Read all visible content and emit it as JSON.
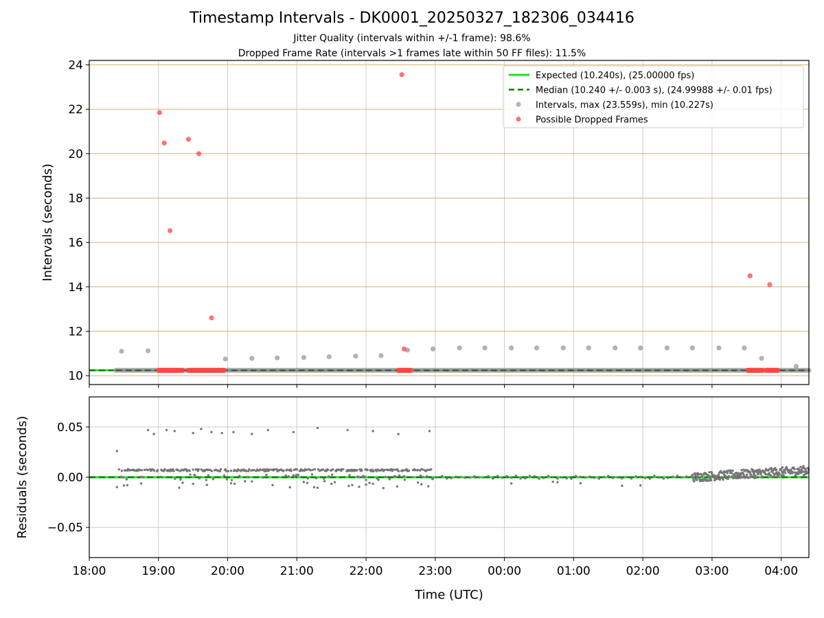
{
  "chart_data": {
    "type": "scatter",
    "title": "Timestamp Intervals - DK0001_20250327_182306_034416",
    "subtitles": [
      "Jitter Quality (intervals within +/-1 frame): 98.6%",
      "Dropped Frame Rate (intervals >1 frames late within 50 FF files): 11.5%"
    ],
    "colors": {
      "expected": "#22dd22",
      "median": "#007f00",
      "intervals": "#999999",
      "dropped": "#ff4444",
      "residuals": "#777777",
      "grid": "#cccccc",
      "ygrid_top": "#d9b36a"
    },
    "top_panel": {
      "ylabel": "Intervals (seconds)",
      "ylim": [
        9.6,
        24.2
      ],
      "yticks": [
        10,
        12,
        14,
        16,
        18,
        20,
        22,
        24
      ],
      "ytick_labels": [
        "10",
        "12",
        "14",
        "16",
        "18",
        "20",
        "22",
        "24"
      ],
      "legend": {
        "position": "top-right",
        "entries": [
          {
            "label": "Expected (10.240s), (25.00000 fps)",
            "kind": "solid-line",
            "color": "#22dd22"
          },
          {
            "label": "Median (10.240 +/- 0.003 s), (24.99988 +/- 0.01 fps)",
            "kind": "dashed-line",
            "color": "#007f00"
          },
          {
            "label": "Intervals, max (23.559s), min (10.227s)",
            "kind": "gray-dot",
            "color": "#999999"
          },
          {
            "label": "Possible Dropped Frames",
            "kind": "red-dot",
            "color": "#ff4444"
          }
        ]
      },
      "expected": 10.24,
      "median": 10.24,
      "gray_points": {
        "x": [
          "18:28",
          "18:51",
          "19:58",
          "20:21",
          "20:43",
          "21:06",
          "21:28",
          "21:51",
          "22:13",
          "22:36",
          "22:58",
          "23:21",
          "23:43",
          "00:06",
          "00:28",
          "00:51",
          "01:13",
          "01:36",
          "01:58",
          "02:21",
          "02:43",
          "03:06",
          "03:28",
          "03:43",
          "04:13"
        ],
        "y": [
          11.1,
          11.12,
          10.75,
          10.78,
          10.8,
          10.82,
          10.85,
          10.88,
          10.9,
          11.15,
          11.2,
          11.25,
          11.25,
          11.25,
          11.25,
          11.25,
          11.25,
          11.25,
          11.25,
          11.25,
          11.25,
          11.25,
          11.25,
          10.78,
          10.42
        ]
      },
      "dropped_points": {
        "x": [
          "19:01",
          "19:05",
          "19:10",
          "19:26",
          "19:35",
          "19:46",
          "22:31",
          "22:33",
          "03:33",
          "03:50"
        ],
        "y": [
          21.85,
          20.48,
          16.53,
          20.65,
          20.0,
          12.6,
          23.56,
          11.2,
          14.5,
          14.1
        ]
      },
      "dropped_clusters": [
        {
          "start": "19:00",
          "end": "19:21"
        },
        {
          "start": "19:26",
          "end": "19:57"
        },
        {
          "start": "22:28",
          "end": "22:39"
        },
        {
          "start": "03:31",
          "end": "03:44"
        },
        {
          "start": "03:47",
          "end": "03:57"
        }
      ],
      "baseline_band": {
        "start": "18:23",
        "end": "04:24",
        "value": 10.24
      }
    },
    "bottom_panel": {
      "ylabel": "Residuals (seconds)",
      "ylim": [
        -0.08,
        0.08
      ],
      "yticks": [
        -0.05,
        0.0,
        0.05
      ],
      "ytick_labels": [
        "−0.05",
        "0.00",
        "0.05"
      ],
      "expected": 0.0,
      "median": 0.0,
      "outliers": {
        "x": [
          "18:51",
          "18:56",
          "19:07",
          "19:14",
          "19:30",
          "19:37",
          "19:46",
          "19:55",
          "20:05",
          "20:21",
          "20:35",
          "20:57",
          "21:18",
          "21:44",
          "22:06",
          "22:28",
          "22:55",
          "18:24"
        ],
        "y": [
          0.047,
          0.043,
          0.047,
          0.046,
          0.044,
          0.048,
          0.045,
          0.044,
          0.045,
          0.043,
          0.047,
          0.045,
          0.049,
          0.047,
          0.046,
          0.043,
          0.046,
          0.026
        ]
      }
    },
    "xaxis": {
      "xlabel": "Time (UTC)",
      "start": "18:00",
      "end": "04:24",
      "ticks": [
        "18:00",
        "19:00",
        "20:00",
        "21:00",
        "22:00",
        "23:00",
        "00:00",
        "01:00",
        "02:00",
        "03:00",
        "04:00"
      ]
    }
  }
}
